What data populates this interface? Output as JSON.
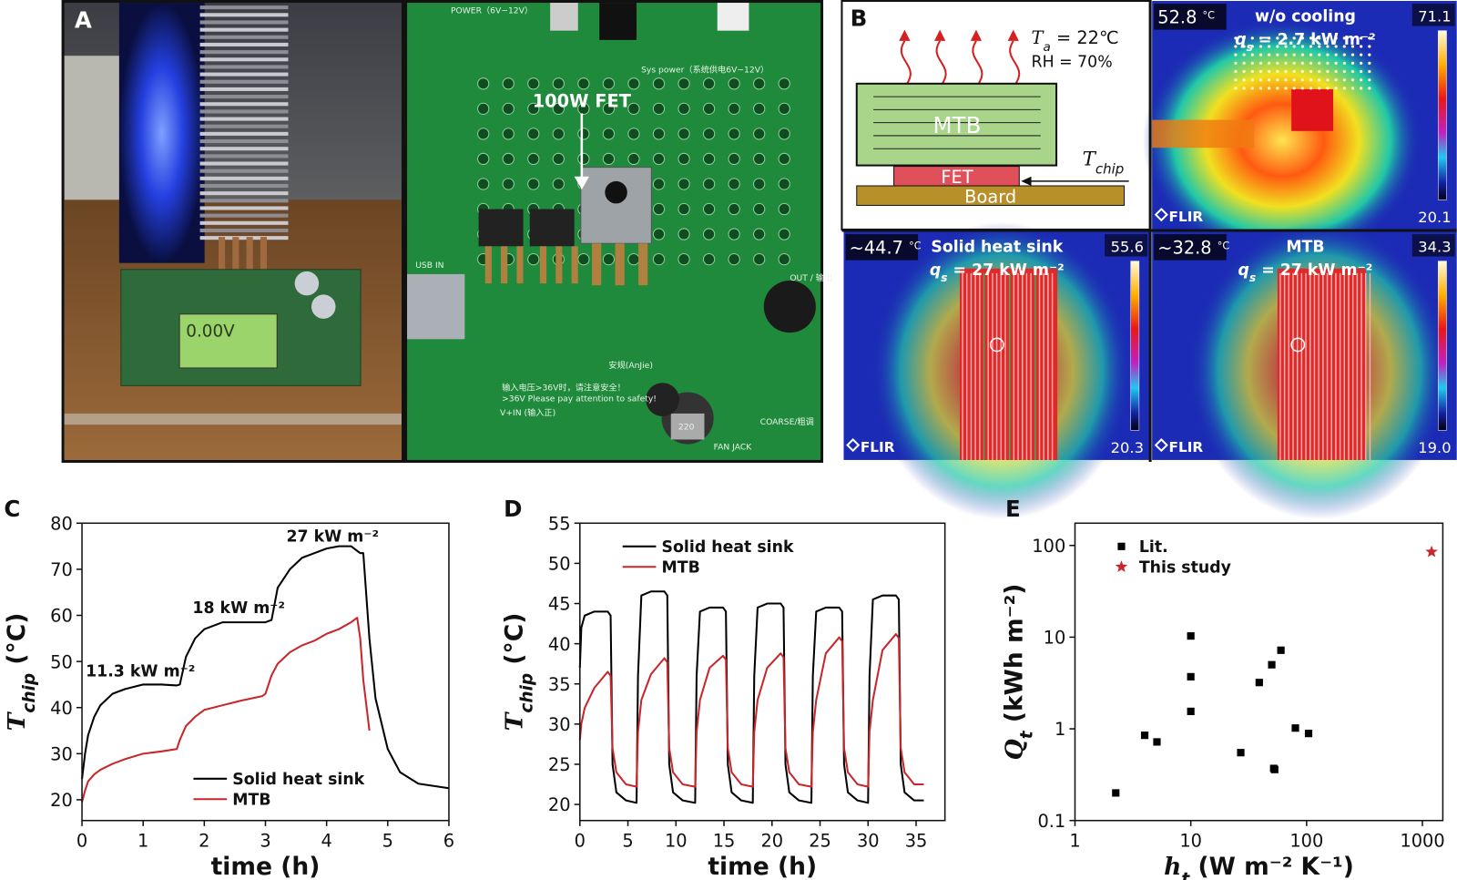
{
  "panel_a": {
    "label": "A",
    "annotation": "100W FET",
    "lcd_text": "0.00V",
    "board_texts": [
      "POWER（6V~12V）",
      "Sys power（系统供电6V~12V）",
      "USB IN",
      "OUT / 输出",
      "安规(AnJie)",
      "输入电压>36V时，请注意安全！",
      ">36V Please pay attention to safety!",
      "V+IN (输入正)",
      "220",
      "FAN JACK",
      "COARSE/粗调"
    ]
  },
  "panel_b": {
    "label": "B",
    "schematic": {
      "ambient": {
        "symbol": "T",
        "sub": "a",
        "rest": " = 22℃"
      },
      "humidity": "RH = 70%",
      "mtb": "MTB",
      "fet": "FET",
      "board": "Board",
      "chip": {
        "symbol": "T",
        "sub": "chip",
        "rest": ""
      }
    },
    "thermal_images": [
      {
        "temp": "52.8",
        "unit": "°C",
        "title": "w/o cooling",
        "flux": {
          "symbol": "q",
          "sub": "s",
          "rest": " = 2.7 kW m⁻²"
        },
        "scale_max": "71.1",
        "scale_min": "20.1",
        "brand": "FLIR"
      },
      {
        "temp": "~44.7",
        "unit": "°C",
        "title": "Solid heat sink",
        "flux": {
          "symbol": "q",
          "sub": "s",
          "rest": " = 27 kW m⁻²"
        },
        "scale_max": "55.6",
        "scale_min": "20.3",
        "brand": "FLIR"
      },
      {
        "temp": "~32.8",
        "unit": "°C",
        "title": "MTB",
        "flux": {
          "symbol": "q",
          "sub": "s",
          "rest": " = 27 kW m⁻²"
        },
        "scale_max": "34.3",
        "scale_min": "19.0",
        "brand": "FLIR"
      }
    ]
  },
  "chart_data": [
    {
      "type": "line",
      "panel_label": "C",
      "xlabel": "time (h)",
      "ylabel": {
        "symbol": "T",
        "sub": "chip",
        "rest": " (°C)"
      },
      "x": [
        0,
        0.05,
        0.1,
        0.2,
        0.3,
        0.5,
        0.7,
        1.0,
        1.3,
        1.55,
        1.6,
        1.7,
        1.85,
        2.0,
        2.3,
        2.6,
        2.95,
        3.0,
        3.1,
        3.2,
        3.4,
        3.6,
        3.8,
        4.0,
        4.2,
        4.4,
        4.5,
        4.55,
        4.6,
        4.7,
        4.8,
        5.0,
        5.2,
        5.5,
        6.0
      ],
      "series": [
        {
          "name": "Solid heat sink",
          "color": "#000000",
          "values": [
            24.5,
            30,
            34,
            38,
            40.5,
            43,
            44,
            45,
            45,
            44.8,
            45,
            51,
            55,
            57,
            58.5,
            58.5,
            58.5,
            58.5,
            59,
            66,
            70,
            72.5,
            73.5,
            74.5,
            75,
            75,
            74,
            73.5,
            73.5,
            55,
            42,
            31,
            26,
            23.5,
            22.5
          ]
        },
        {
          "name": "MTB",
          "color": "#c8262b",
          "values": [
            19.5,
            22,
            24,
            25.5,
            26.5,
            27.8,
            28.8,
            30,
            30.5,
            31,
            33,
            36,
            38,
            39.5,
            40.5,
            41.5,
            42.5,
            43,
            47,
            49.5,
            52,
            53.5,
            54.5,
            56,
            57,
            58.5,
            59.5,
            55,
            46,
            35,
            null,
            null,
            null,
            null,
            null
          ]
        }
      ],
      "annotations": [
        "11.3 kW m⁻²",
        "18 kW m⁻²",
        "27 kW m⁻²"
      ],
      "xlim": [
        0,
        6
      ],
      "ylim": [
        15.5,
        80
      ],
      "xticks": [
        0,
        1,
        2,
        3,
        4,
        5,
        6
      ],
      "yticks": [
        20,
        30,
        40,
        50,
        60,
        70,
        80
      ],
      "legend": "lower center"
    },
    {
      "type": "line",
      "panel_label": "D",
      "xlabel": "time (h)",
      "ylabel": {
        "symbol": "T",
        "sub": "chip",
        "rest": " (°C)"
      },
      "x": [
        0,
        0.15,
        0.5,
        1.5,
        2.9,
        3.2,
        3.4,
        3.8,
        4.8,
        5.9,
        6.05,
        6.4,
        7.4,
        8.8,
        9.1,
        9.3,
        9.7,
        10.7,
        12,
        12.15,
        12.5,
        13.5,
        14.9,
        15.2,
        15.4,
        15.8,
        16.8,
        18,
        18.15,
        18.5,
        19.5,
        20.9,
        21.2,
        21.4,
        21.8,
        22.8,
        24.1,
        24.25,
        24.6,
        25.6,
        27,
        27.3,
        27.5,
        27.9,
        28.9,
        30,
        30.15,
        30.5,
        31.5,
        32.9,
        33.2,
        33.4,
        33.8,
        34.8,
        35.8
      ],
      "series": [
        {
          "name": "Solid heat sink",
          "color": "#000000",
          "values": [
            37,
            42,
            43.5,
            44,
            44,
            43.5,
            25,
            21.5,
            20.5,
            20.2,
            36,
            46,
            46.5,
            46.5,
            46,
            25,
            21.5,
            20.5,
            20.2,
            36,
            44,
            44.5,
            44.5,
            44,
            25,
            21.5,
            20.5,
            20.2,
            36,
            44.5,
            45,
            45,
            44.5,
            25,
            21.5,
            20.5,
            20.2,
            36,
            44,
            44.5,
            44.5,
            44,
            25,
            21.5,
            20.5,
            20.2,
            36,
            45.5,
            46,
            46,
            45.5,
            25,
            21.5,
            20.5,
            20.5
          ]
        },
        {
          "name": "MTB",
          "color": "#c8262b",
          "values": [
            28,
            30,
            32,
            34.5,
            36.5,
            36,
            27,
            24,
            22.5,
            22.2,
            29,
            33,
            36.2,
            38.2,
            37.7,
            27,
            24,
            22.5,
            22.2,
            29,
            33,
            37,
            38.5,
            38,
            27,
            24,
            22.5,
            22.2,
            29,
            33,
            37,
            38.8,
            38.3,
            27,
            24,
            22.5,
            22.2,
            29,
            33,
            38.8,
            40.8,
            40.3,
            27,
            24,
            22.5,
            22.2,
            29,
            33,
            39.2,
            41.2,
            40.7,
            27,
            24,
            22.5,
            22.5
          ]
        }
      ],
      "xlim": [
        0,
        38
      ],
      "ylim": [
        18,
        55
      ],
      "xticks": [
        0,
        5,
        10,
        15,
        20,
        25,
        30,
        35
      ],
      "yticks": [
        20,
        25,
        30,
        35,
        40,
        45,
        50,
        55
      ],
      "legend": "upper left"
    },
    {
      "type": "scatter",
      "panel_label": "E",
      "xlabel": {
        "symbol": "h",
        "sub": "t",
        "rest": " (W m⁻² K⁻¹)"
      },
      "ylabel": {
        "symbol": "Q",
        "sub": "t",
        "rest": " (kWh m⁻²)"
      },
      "series": [
        {
          "name": "Lit.",
          "color": "#000000",
          "marker": "square",
          "x": [
            2.25,
            4,
            5.1,
            10,
            10,
            10,
            27,
            39,
            50,
            52,
            53,
            60,
            80,
            104
          ],
          "values": [
            0.2,
            0.85,
            0.72,
            10.3,
            3.7,
            1.55,
            0.55,
            3.2,
            5,
            0.37,
            0.36,
            7.2,
            1.02,
            0.89
          ]
        },
        {
          "name": "This study",
          "color": "#c8262b",
          "marker": "star",
          "x": [
            1200
          ],
          "values": [
            85
          ]
        }
      ],
      "xscale": "log",
      "yscale": "log",
      "xlim": [
        1,
        1500
      ],
      "ylim": [
        0.1,
        175
      ],
      "xticks": [
        1,
        10,
        100,
        1000
      ],
      "yticks": [
        0.1,
        1,
        10,
        100
      ],
      "legend": "upper left"
    }
  ]
}
